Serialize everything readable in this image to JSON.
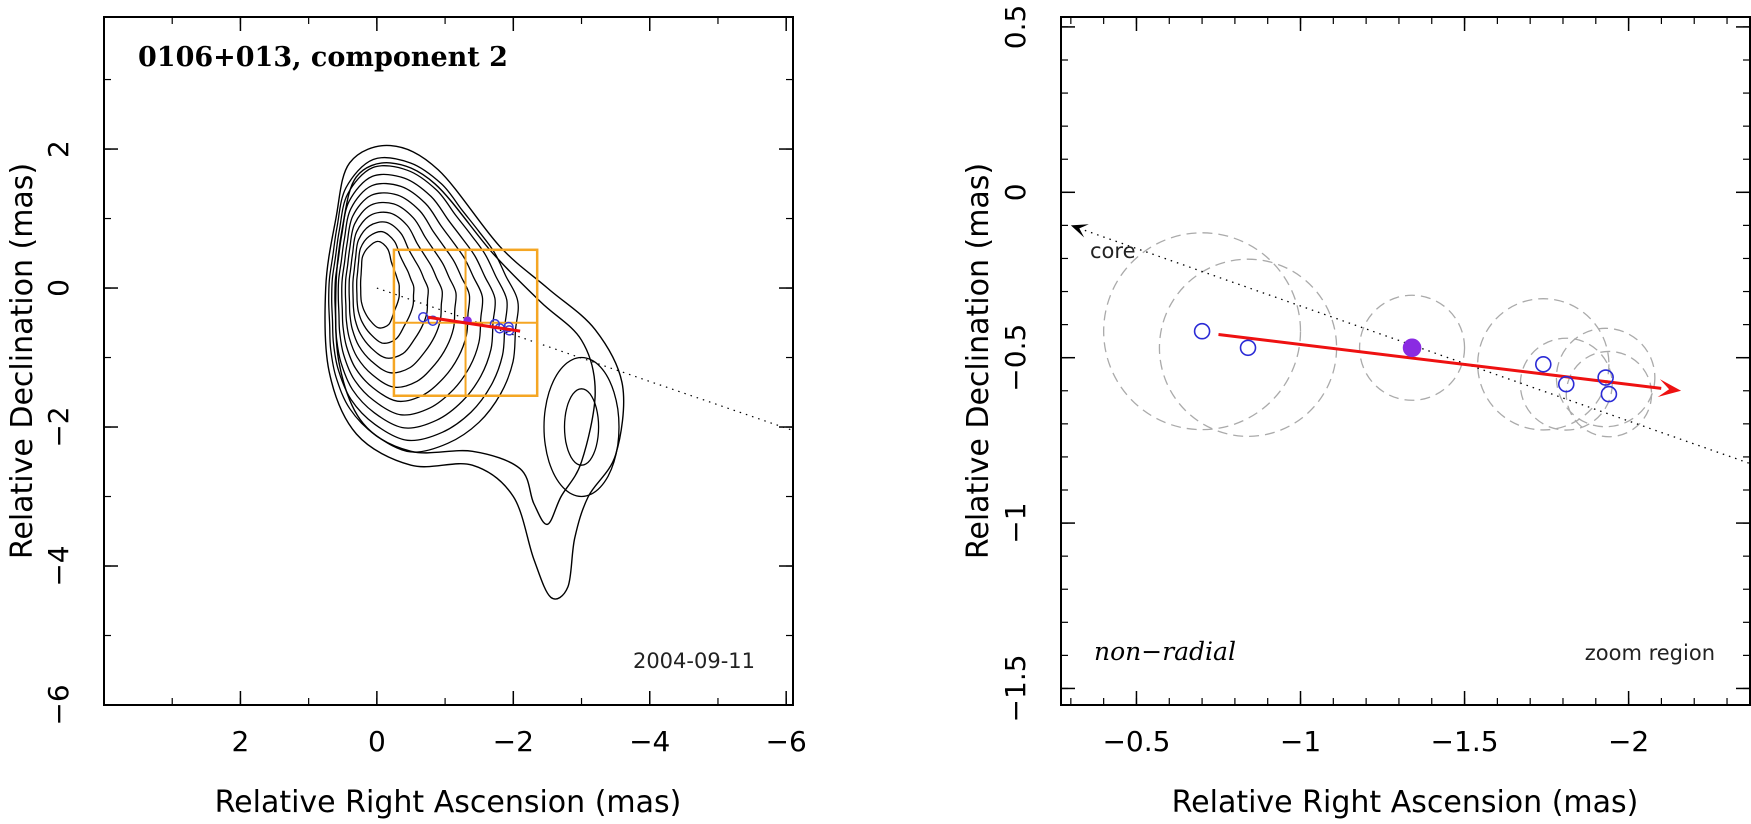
{
  "chart_data": [
    {
      "type": "contour",
      "title": "0106+013, component 2",
      "date_label": "2004-09-11",
      "xlabel": "Relative Right Ascension (mas)",
      "ylabel": "Relative Declination (mas)",
      "xlim": [
        4.0,
        -6.1
      ],
      "ylim": [
        -6.0,
        3.9
      ],
      "xticks": [
        2,
        0,
        -2,
        -4,
        -6
      ],
      "xtick_labels": [
        "2",
        "0",
        "−2",
        "−4",
        "−6"
      ],
      "yticks": [
        2,
        0,
        -2,
        -4,
        -6
      ],
      "ytick_labels": [
        "2",
        "0",
        "−2",
        "−4",
        "−6"
      ],
      "contour_levels": 12,
      "peak": [
        0.0,
        0.0
      ],
      "secondary_peak": [
        -3.0,
        -2.0
      ],
      "core_direction": {
        "from": [
          0,
          0
        ],
        "to": [
          -6.1,
          -2.05
        ]
      },
      "zoom_box": {
        "x": [
          -0.25,
          -2.35
        ],
        "y": [
          -1.55,
          0.55
        ]
      },
      "motion_vector": {
        "from": [
          -0.75,
          -0.42
        ],
        "to": [
          -2.1,
          -0.62
        ]
      },
      "component_positions": [
        {
          "x": -0.68,
          "y": -0.42,
          "filled": false
        },
        {
          "x": -0.82,
          "y": -0.47,
          "filled": false
        },
        {
          "x": -1.33,
          "y": -0.47,
          "filled": true
        },
        {
          "x": -1.73,
          "y": -0.52,
          "filled": false
        },
        {
          "x": -1.8,
          "y": -0.58,
          "filled": false
        },
        {
          "x": -1.93,
          "y": -0.56,
          "filled": false
        },
        {
          "x": -1.94,
          "y": -0.61,
          "filled": false
        }
      ]
    },
    {
      "type": "scatter",
      "title": "zoom region",
      "annotation": "non−radial",
      "core_label": "core",
      "xlabel": "Relative Right Ascension (mas)",
      "ylabel": "Relative Declination (mas)",
      "xlim": [
        -0.27,
        -2.37
      ],
      "ylim": [
        -1.55,
        0.53
      ],
      "xticks": [
        -0.5,
        -1,
        -1.5,
        -2
      ],
      "xtick_labels": [
        "−0.5",
        "−1",
        "−1.5",
        "−2"
      ],
      "yticks": [
        0.5,
        0,
        -0.5,
        -1,
        -1.5
      ],
      "ytick_labels": [
        "0.5",
        "0",
        "−0.5",
        "−1",
        "−1.5"
      ],
      "core_direction": {
        "from": [
          -0.3,
          -0.1
        ],
        "to": [
          -2.37,
          -0.82
        ]
      },
      "motion_vector": {
        "from": [
          -0.75,
          -0.43
        ],
        "to": [
          -2.16,
          -0.6
        ]
      },
      "points": [
        {
          "x": -0.7,
          "y": -0.42,
          "r": 0.3,
          "filled": false
        },
        {
          "x": -0.84,
          "y": -0.47,
          "r": 0.27,
          "filled": false
        },
        {
          "x": -1.34,
          "y": -0.47,
          "r": 0.16,
          "filled": true
        },
        {
          "x": -1.74,
          "y": -0.52,
          "r": 0.2,
          "filled": false
        },
        {
          "x": -1.81,
          "y": -0.58,
          "r": 0.14,
          "filled": false
        },
        {
          "x": -1.93,
          "y": -0.56,
          "r": 0.15,
          "filled": false
        },
        {
          "x": -1.94,
          "y": -0.61,
          "r": 0.13,
          "filled": false
        }
      ]
    }
  ]
}
